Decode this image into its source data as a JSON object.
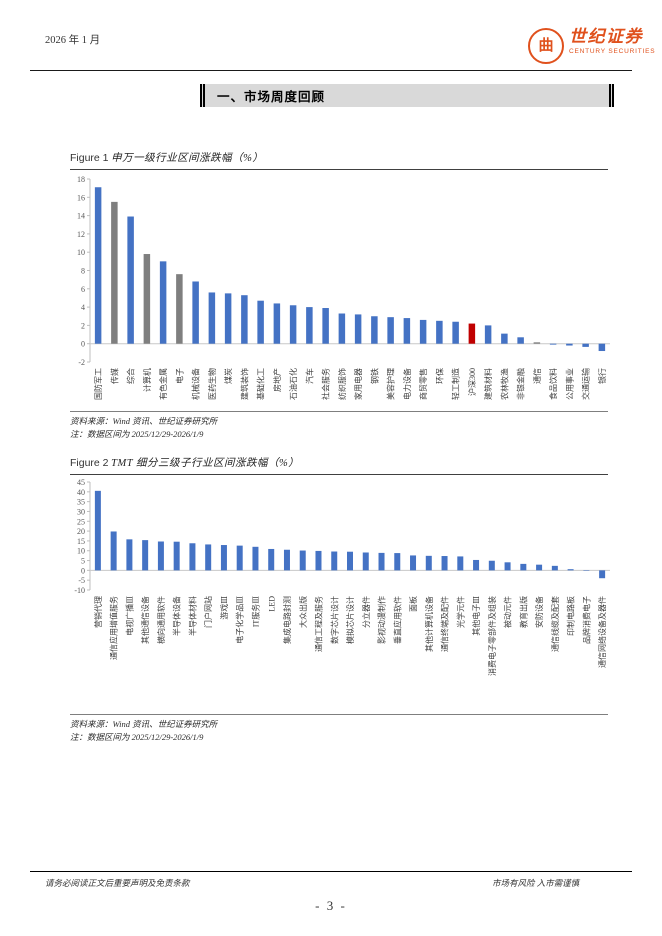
{
  "header": {
    "date": "2026 年 1 月",
    "logo": {
      "cn": "世纪证券",
      "en": "CENTURY SECURITIES",
      "seal": "曲",
      "color": "#E0511D"
    }
  },
  "section": {
    "title": "一、市场周度回顾"
  },
  "figures": [
    {
      "title_en": "Figure 1",
      "title_cn": "申万一级行业区间涨跌幅（%）",
      "source": "资料来源：Wind 资讯、世纪证券研究所",
      "note": "注：数据区间为 2025/12/29-2026/1/9"
    },
    {
      "title_en": "Figure 2",
      "title_cn": "TMT 细分三级子行业区间涨跌幅（%）",
      "source": "资料来源：Wind 资讯、世纪证券研究所",
      "note": "注：数据区间为 2025/12/29-2026/1/9"
    }
  ],
  "footer": {
    "left": "请务必阅读正文后重要声明及免责条款",
    "right": "市场有风险 入市需谨慎",
    "page": "- 3 -"
  },
  "chart_data": [
    {
      "type": "bar",
      "title": "申万一级行业区间涨跌幅（%）",
      "xlabel": "",
      "ylabel": "",
      "ylim": [
        -2,
        18
      ],
      "ystep": 2,
      "grid": false,
      "legend": "none",
      "palette": {
        "blue": "#4472C4",
        "gray": "#7F7F7F",
        "red": "#C00000"
      },
      "default_color": "blue",
      "categories": [
        "国防军工",
        "传媒",
        "综合",
        "计算机",
        "有色金属",
        "电子",
        "机械设备",
        "医药生物",
        "煤炭",
        "建筑装饰",
        "基础化工",
        "房地产",
        "石油石化",
        "汽车",
        "社会服务",
        "纺织服饰",
        "家用电器",
        "钢铁",
        "美容护理",
        "电力设备",
        "商贸零售",
        "环保",
        "轻工制造",
        "沪深300",
        "建筑材料",
        "农林牧渔",
        "非银金融",
        "通信",
        "食品饮料",
        "公用事业",
        "交通运输",
        "银行"
      ],
      "values": [
        17.1,
        15.5,
        13.9,
        9.8,
        9.0,
        7.6,
        6.8,
        5.6,
        5.5,
        5.3,
        4.7,
        4.4,
        4.2,
        4.0,
        3.9,
        3.3,
        3.2,
        3.0,
        2.9,
        2.8,
        2.6,
        2.5,
        2.4,
        2.2,
        2.0,
        1.1,
        0.7,
        0.15,
        -0.1,
        -0.2,
        -0.35,
        -0.8
      ],
      "bar_colors": [
        "blue",
        "gray",
        "blue",
        "gray",
        "blue",
        "gray",
        "blue",
        "blue",
        "blue",
        "blue",
        "blue",
        "blue",
        "blue",
        "blue",
        "blue",
        "blue",
        "blue",
        "blue",
        "blue",
        "blue",
        "blue",
        "blue",
        "blue",
        "red",
        "blue",
        "blue",
        "blue",
        "gray",
        "blue",
        "blue",
        "blue",
        "blue"
      ]
    },
    {
      "type": "bar",
      "title": "TMT 细分三级子行业区间涨跌幅（%）",
      "xlabel": "",
      "ylabel": "",
      "ylim": [
        -10,
        45
      ],
      "ystep": 5,
      "grid": false,
      "legend": "none",
      "palette": {
        "blue": "#4472C4",
        "gray": "#7F7F7F",
        "red": "#C00000"
      },
      "default_color": "blue",
      "categories": [
        "营销代理",
        "通信应用增值服务",
        "电视广播Ⅲ",
        "其他通信设备",
        "横向通用软件",
        "半导体设备",
        "半导体材料",
        "门户网站",
        "游戏Ⅲ",
        "电子化学品Ⅲ",
        "IT服务Ⅲ",
        "LED",
        "集成电路封测",
        "大众出版",
        "通信工程及服务",
        "数字芯片设计",
        "模拟芯片设计",
        "分立器件",
        "影视动漫制作",
        "垂直应用软件",
        "面板",
        "其他计算机设备",
        "通信终端及配件",
        "光学元件",
        "其他电子Ⅲ",
        "消费电子零部件及组装",
        "被动元件",
        "教育出版",
        "安防设备",
        "通信线缆及配套",
        "印制电路板",
        "品牌消费电子",
        "通信网络设备及器件"
      ],
      "values": [
        40.5,
        19.8,
        15.8,
        15.4,
        14.7,
        14.6,
        13.8,
        13.2,
        12.9,
        12.6,
        12.0,
        10.9,
        10.5,
        10.1,
        9.9,
        9.6,
        9.5,
        9.1,
        8.9,
        8.8,
        7.6,
        7.4,
        7.3,
        7.1,
        5.3,
        4.9,
        4.1,
        3.3,
        2.9,
        2.3,
        0.6,
        0.15,
        -4.0
      ]
    }
  ]
}
